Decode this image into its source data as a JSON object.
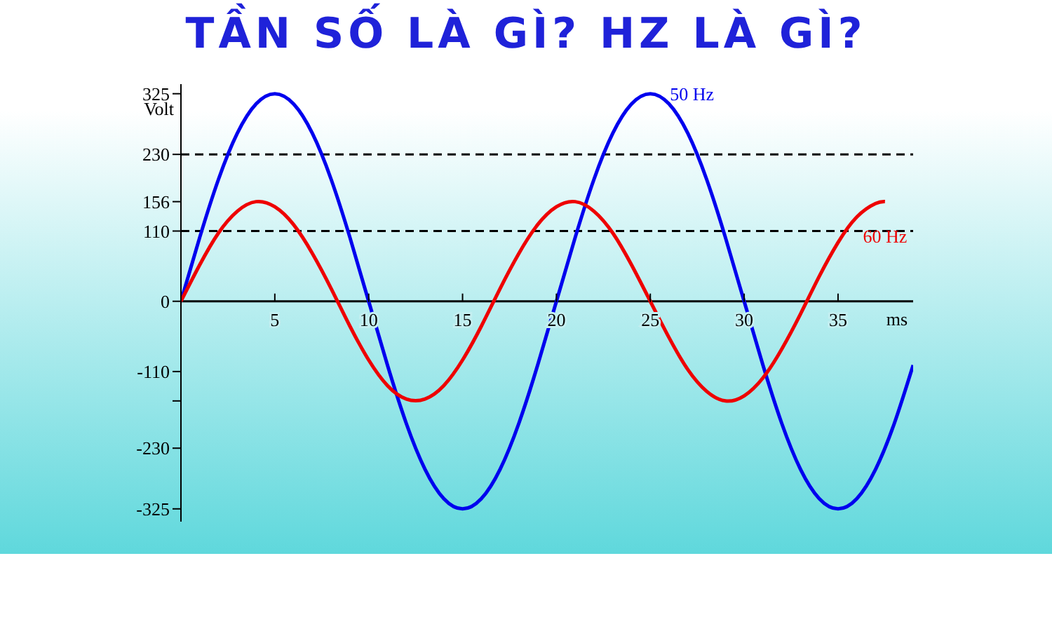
{
  "chart_data": {
    "type": "line",
    "title": "TẦN SỐ LÀ GÌ? HZ LÀ GÌ?",
    "xlabel": "ms",
    "ylabel": "Volt",
    "xlim": [
      0,
      39
    ],
    "xticks": [
      5,
      10,
      15,
      20,
      25,
      30,
      35
    ],
    "ylim": [
      -345,
      340
    ],
    "yticks": [
      325,
      230,
      156,
      110,
      0,
      -110,
      {
        "value": -156,
        "label": null
      },
      -230,
      -325
    ],
    "marker": "none",
    "line_style": "solid",
    "ref_lines": [
      {
        "axis": "y",
        "value": 230,
        "label": null,
        "color": "#000000",
        "line_style": "dashed"
      },
      {
        "axis": "y",
        "value": 110,
        "label": null,
        "color": "#000000",
        "line_style": "dashed"
      }
    ],
    "series": [
      {
        "name": "50 Hz",
        "color": "#0000ee",
        "x": [
          0,
          1,
          2,
          3,
          4,
          5,
          6,
          7,
          8,
          9,
          10,
          11,
          12,
          13,
          14,
          15,
          16,
          17,
          18,
          19,
          20,
          21,
          22,
          23,
          24,
          25,
          26,
          27,
          28,
          29,
          30,
          31,
          32,
          33,
          34,
          35,
          36,
          37,
          38,
          39
        ],
        "values": [
          0,
          100,
          191,
          263,
          309,
          325,
          309,
          263,
          191,
          100,
          0,
          -100,
          -191,
          -263,
          -309,
          -325,
          -309,
          -263,
          -191,
          -100,
          0,
          100,
          191,
          263,
          309,
          325,
          309,
          263,
          191,
          100,
          0,
          -100,
          -191,
          -263,
          -309,
          -325,
          -309,
          -263,
          -191,
          -100
        ]
      },
      {
        "name": "60 Hz",
        "color": "#ee0000",
        "x": [
          0,
          1,
          2,
          3,
          4,
          5,
          6,
          7,
          8,
          9,
          10,
          11,
          12,
          13,
          14,
          15,
          16,
          17,
          18,
          19,
          20,
          21,
          22,
          23,
          24,
          25,
          26,
          27,
          28,
          29,
          30,
          31,
          32,
          33,
          34,
          35,
          36,
          37,
          37.5
        ],
        "values": [
          0,
          57,
          107,
          141,
          156,
          148,
          120,
          75,
          20,
          -39,
          -92,
          -132,
          -153,
          -153,
          -132,
          -92,
          -39,
          20,
          75,
          120,
          148,
          156,
          141,
          107,
          57,
          0,
          -57,
          -107,
          -141,
          -156,
          -148,
          -120,
          -75,
          -20,
          39,
          92,
          132,
          153,
          156
        ]
      }
    ]
  }
}
